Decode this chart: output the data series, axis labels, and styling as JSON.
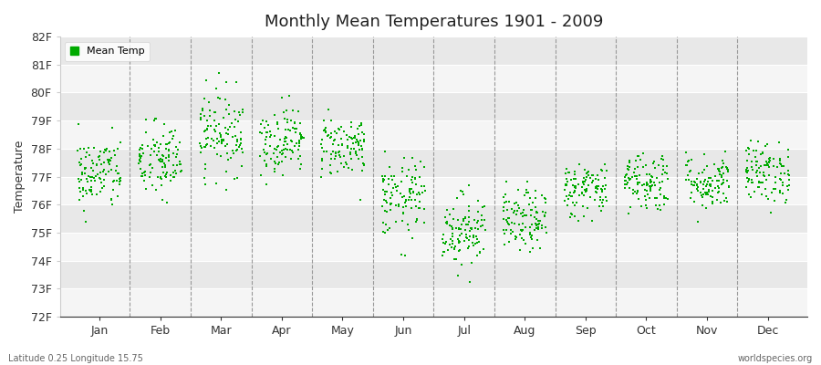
{
  "title": "Monthly Mean Temperatures 1901 - 2009",
  "ylabel": "Temperature",
  "xlabel_months": [
    "Jan",
    "Feb",
    "Mar",
    "Apr",
    "May",
    "Jun",
    "Jul",
    "Aug",
    "Sep",
    "Oct",
    "Nov",
    "Dec"
  ],
  "ylim": [
    72,
    82
  ],
  "yticks": [
    72,
    73,
    74,
    75,
    76,
    77,
    78,
    79,
    80,
    81,
    82
  ],
  "ytick_labels": [
    "72F",
    "73F",
    "74F",
    "75F",
    "76F",
    "77F",
    "78F",
    "79F",
    "80F",
    "81F",
    "82F"
  ],
  "dot_color": "#00aa00",
  "bg_light": "#f5f5f5",
  "bg_dark": "#e8e8e8",
  "bg_outer": "#ffffff",
  "legend_label": "Mean Temp",
  "footer_left": "Latitude 0.25 Longitude 15.75",
  "footer_right": "worldspecies.org",
  "seed": 42,
  "n_years": 109,
  "monthly_means": [
    77.1,
    77.55,
    78.6,
    78.3,
    78.1,
    76.2,
    75.1,
    75.4,
    76.55,
    76.85,
    76.8,
    77.15
  ],
  "monthly_stds": [
    0.65,
    0.7,
    0.75,
    0.6,
    0.55,
    0.7,
    0.65,
    0.55,
    0.5,
    0.55,
    0.5,
    0.55
  ]
}
